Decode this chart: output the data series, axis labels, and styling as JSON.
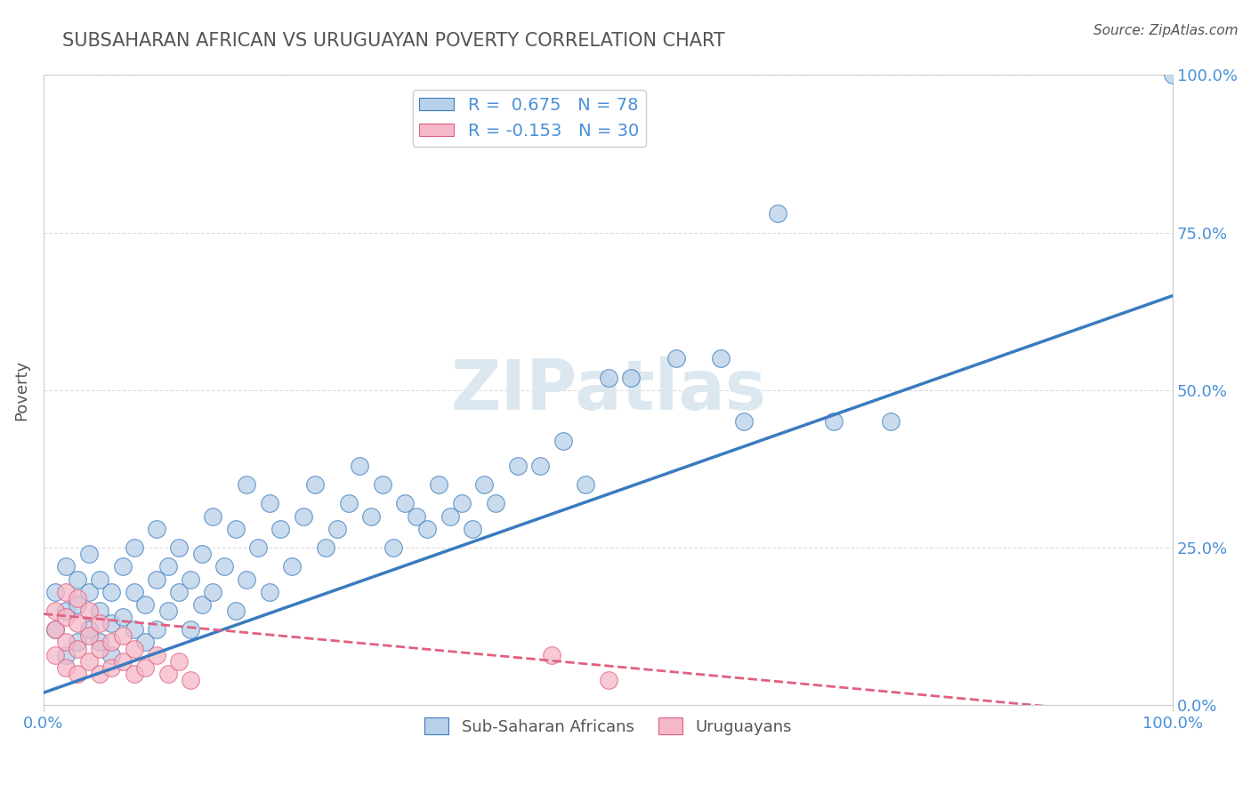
{
  "title": "SUBSAHARAN AFRICAN VS URUGUAYAN POVERTY CORRELATION CHART",
  "source_text": "Source: ZipAtlas.com",
  "ylabel": "Poverty",
  "xlim": [
    0,
    1
  ],
  "ylim": [
    0,
    1
  ],
  "xtick_labels": [
    "0.0%",
    "100.0%"
  ],
  "ytick_labels": [
    "0.0%",
    "25.0%",
    "50.0%",
    "75.0%",
    "100.0%"
  ],
  "ytick_vals": [
    0.0,
    0.25,
    0.5,
    0.75,
    1.0
  ],
  "blue_R": 0.675,
  "blue_N": 78,
  "pink_R": -0.153,
  "pink_N": 30,
  "blue_color": "#b8d0e8",
  "pink_color": "#f5b8c8",
  "blue_line_color": "#3a7bbf",
  "pink_line_color": "#e06080",
  "watermark": "ZIPatlas",
  "watermark_color": "#dce8f0",
  "legend_label_blue": "Sub-Saharan Africans",
  "legend_label_pink": "Uruguayans",
  "title_color": "#555555",
  "axis_color": "#cccccc",
  "tick_color": "#4a90d9",
  "blue_scatter_x": [
    0.01,
    0.01,
    0.02,
    0.02,
    0.02,
    0.03,
    0.03,
    0.03,
    0.04,
    0.04,
    0.04,
    0.05,
    0.05,
    0.05,
    0.06,
    0.06,
    0.06,
    0.07,
    0.07,
    0.08,
    0.08,
    0.08,
    0.09,
    0.09,
    0.1,
    0.1,
    0.1,
    0.11,
    0.11,
    0.12,
    0.12,
    0.13,
    0.13,
    0.14,
    0.14,
    0.15,
    0.15,
    0.16,
    0.17,
    0.17,
    0.18,
    0.18,
    0.19,
    0.2,
    0.2,
    0.21,
    0.22,
    0.23,
    0.24,
    0.25,
    0.26,
    0.27,
    0.28,
    0.29,
    0.3,
    0.31,
    0.32,
    0.33,
    0.34,
    0.35,
    0.36,
    0.37,
    0.38,
    0.39,
    0.4,
    0.42,
    0.44,
    0.46,
    0.48,
    0.5,
    0.52,
    0.56,
    0.6,
    0.62,
    0.65,
    0.7,
    0.75,
    1.0
  ],
  "blue_scatter_y": [
    0.12,
    0.18,
    0.08,
    0.15,
    0.22,
    0.1,
    0.16,
    0.2,
    0.12,
    0.18,
    0.24,
    0.1,
    0.15,
    0.2,
    0.08,
    0.13,
    0.18,
    0.14,
    0.22,
    0.12,
    0.18,
    0.25,
    0.1,
    0.16,
    0.12,
    0.2,
    0.28,
    0.15,
    0.22,
    0.18,
    0.25,
    0.12,
    0.2,
    0.16,
    0.24,
    0.18,
    0.3,
    0.22,
    0.15,
    0.28,
    0.2,
    0.35,
    0.25,
    0.18,
    0.32,
    0.28,
    0.22,
    0.3,
    0.35,
    0.25,
    0.28,
    0.32,
    0.38,
    0.3,
    0.35,
    0.25,
    0.32,
    0.3,
    0.28,
    0.35,
    0.3,
    0.32,
    0.28,
    0.35,
    0.32,
    0.38,
    0.38,
    0.42,
    0.35,
    0.52,
    0.52,
    0.55,
    0.55,
    0.45,
    0.78,
    0.45,
    0.45,
    1.0
  ],
  "pink_scatter_x": [
    0.01,
    0.01,
    0.01,
    0.02,
    0.02,
    0.02,
    0.02,
    0.03,
    0.03,
    0.03,
    0.03,
    0.04,
    0.04,
    0.04,
    0.05,
    0.05,
    0.05,
    0.06,
    0.06,
    0.07,
    0.07,
    0.08,
    0.08,
    0.09,
    0.1,
    0.11,
    0.12,
    0.13,
    0.45,
    0.5
  ],
  "pink_scatter_y": [
    0.12,
    0.08,
    0.15,
    0.06,
    0.1,
    0.14,
    0.18,
    0.05,
    0.09,
    0.13,
    0.17,
    0.07,
    0.11,
    0.15,
    0.05,
    0.09,
    0.13,
    0.06,
    0.1,
    0.07,
    0.11,
    0.05,
    0.09,
    0.06,
    0.08,
    0.05,
    0.07,
    0.04,
    0.08,
    0.04
  ],
  "blue_line_x0": 0.0,
  "blue_line_x1": 1.0,
  "blue_line_y0": 0.02,
  "blue_line_y1": 0.65,
  "pink_line_x0": 0.0,
  "pink_line_x1": 1.0,
  "pink_line_y0": 0.145,
  "pink_line_y1": -0.02,
  "grid_color": "#dddddd",
  "background_color": "#ffffff"
}
